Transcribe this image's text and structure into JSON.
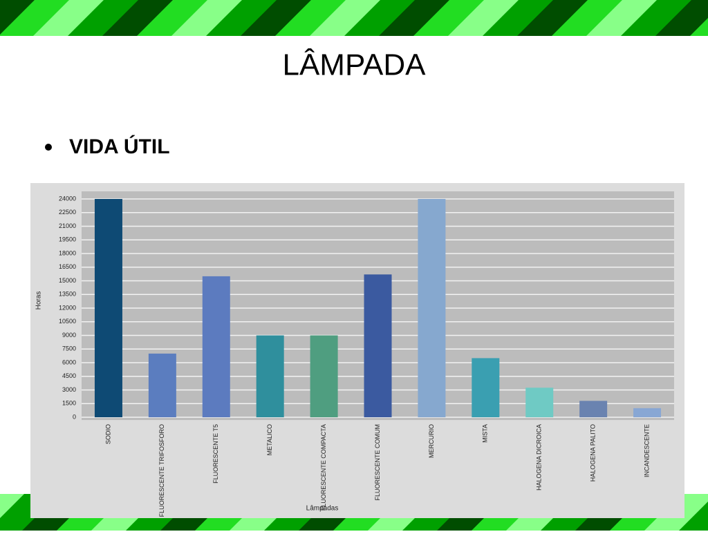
{
  "slide": {
    "title": "LÂMPADA",
    "bullet": "VIDA ÚTIL"
  },
  "chart_data": {
    "type": "bar",
    "categories": [
      "SODIO",
      "FLUORESCENTE TRIFOSFORO",
      "FLUORESCENTE T5",
      "METALICO",
      "FLUORESCENTE COMPACTA",
      "FLUORESCENTE COMUM",
      "MERCURIO",
      "MISTA",
      "HALOGENA DICROICA",
      "HALOGENA PALITO",
      "INCANDESCENTE"
    ],
    "values": [
      24000,
      7000,
      15500,
      9000,
      9000,
      15700,
      24000,
      6500,
      3250,
      1800,
      1000
    ],
    "colors": [
      "#0e4a74",
      "#5b7dbf",
      "#5c7bbf",
      "#2f8f9d",
      "#4f9e80",
      "#3b5aa0",
      "#86a8cf",
      "#3a9fb1",
      "#6fcac4",
      "#6a83b0",
      "#88a7d4"
    ],
    "ylabel": "Horas",
    "xlabel": "Lâmpadas",
    "ylim": [
      0,
      24000
    ],
    "yticks": [
      0,
      1500,
      3000,
      4500,
      6000,
      7500,
      9000,
      10500,
      12000,
      13500,
      15000,
      16500,
      18000,
      19500,
      21000,
      22500,
      24000
    ],
    "grid": true
  }
}
